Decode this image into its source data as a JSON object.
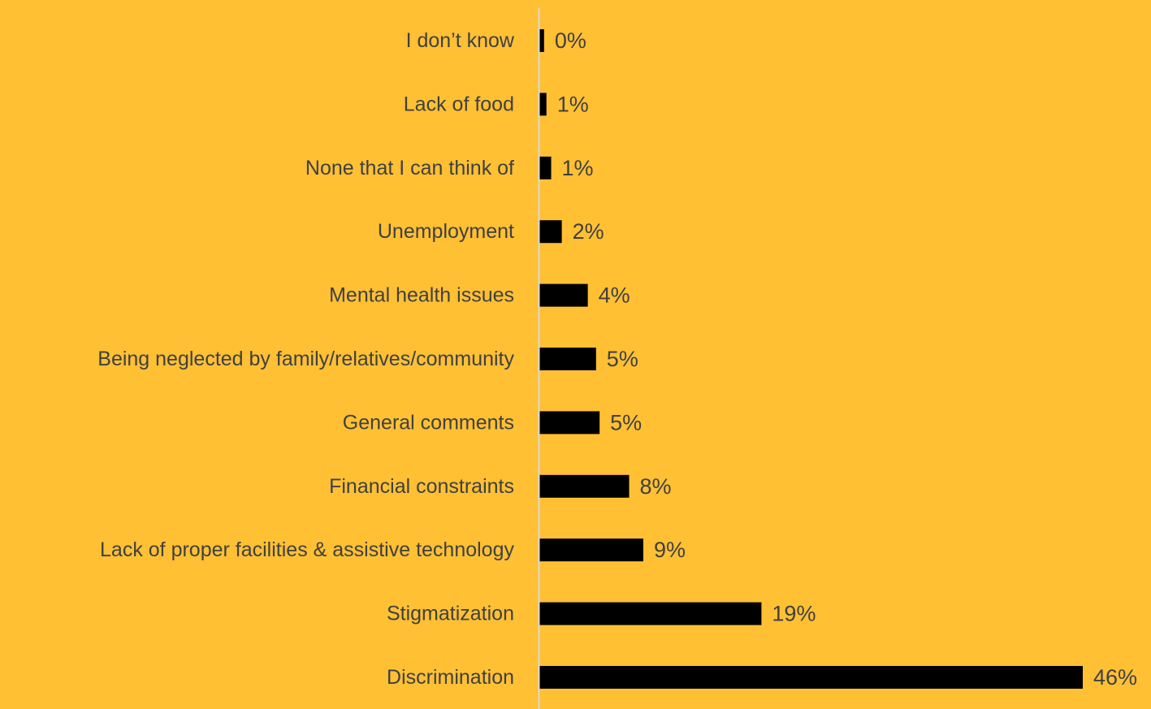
{
  "chart_data": {
    "type": "bar",
    "orientation": "horizontal",
    "title": "",
    "xlabel": "",
    "ylabel": "",
    "categories": [
      "I don’t know",
      "Lack of food",
      "None that I can think of",
      "Unemployment",
      "Mental health issues",
      "Being neglected by family/relatives/community",
      "General comments",
      "Financial constraints",
      "Lack of proper facilities & assistive technology",
      "Stigmatization",
      "Discrimination"
    ],
    "values": [
      0.4,
      0.6,
      1,
      1.9,
      4.1,
      4.8,
      5.1,
      7.6,
      8.8,
      18.8,
      46
    ],
    "value_labels": [
      "0%",
      "1%",
      "1%",
      "2%",
      "4%",
      "5%",
      "5%",
      "8%",
      "9%",
      "19%",
      "46%"
    ],
    "unit": "%",
    "xlim": [
      0,
      46
    ],
    "grid": false,
    "legend": "none",
    "colors": {
      "background": "#FFC034",
      "bar": "#000000",
      "axis": "#D9D9D9",
      "text": "#404040"
    }
  }
}
